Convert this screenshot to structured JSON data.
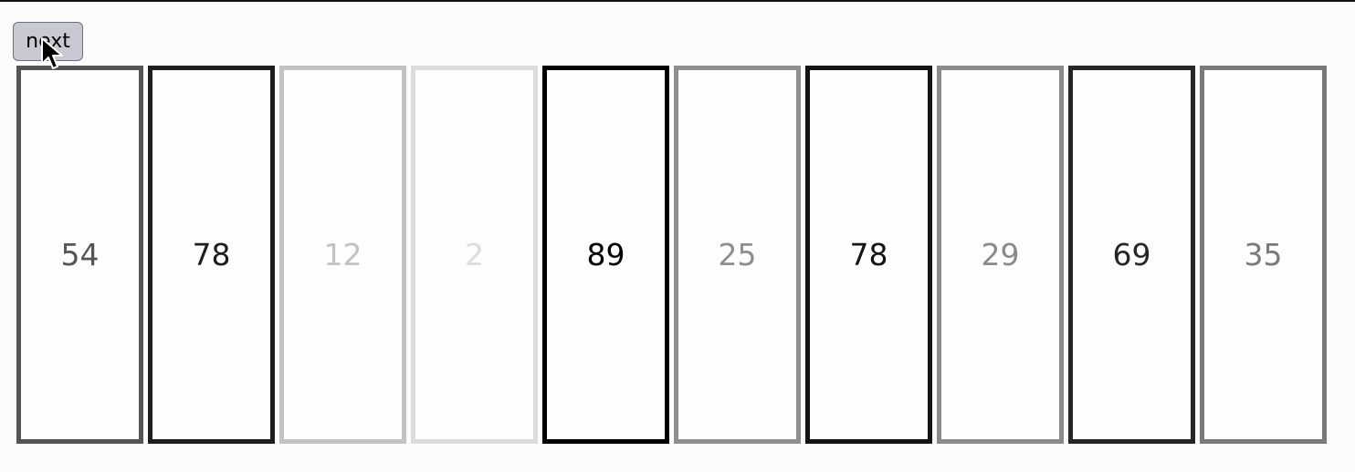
{
  "controls": {
    "next_label": "next"
  },
  "cards": [
    {
      "value": "54",
      "color": "#555555"
    },
    {
      "value": "78",
      "color": "#1e1e1e"
    },
    {
      "value": "12",
      "color": "#c2c2c2"
    },
    {
      "value": "2",
      "color": "#dcdcdc"
    },
    {
      "value": "89",
      "color": "#000000"
    },
    {
      "value": "25",
      "color": "#8e8e8e"
    },
    {
      "value": "78",
      "color": "#141414"
    },
    {
      "value": "29",
      "color": "#8a8a8a"
    },
    {
      "value": "69",
      "color": "#262626"
    },
    {
      "value": "35",
      "color": "#7a7a7a"
    }
  ],
  "icons": {
    "cursor": "mouse-pointer-icon"
  }
}
